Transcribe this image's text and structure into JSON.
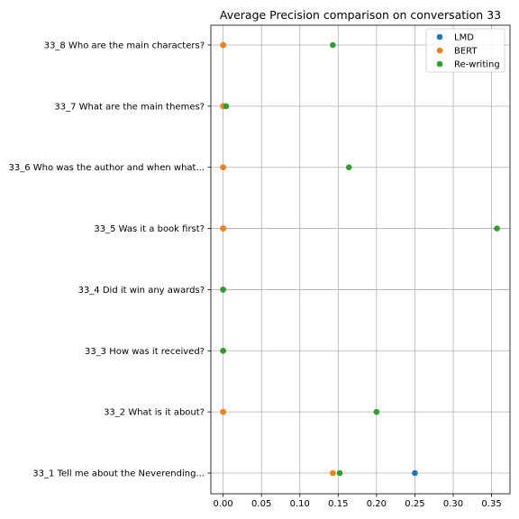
{
  "chart_data": {
    "type": "scatter",
    "title": "Average Precision comparison on conversation 33",
    "xlabel": "",
    "ylabel": "",
    "xlim": [
      -0.016,
      0.374
    ],
    "xticks": [
      0.0,
      0.05,
      0.1,
      0.15,
      0.2,
      0.25,
      0.3,
      0.35
    ],
    "xtick_labels": [
      "0.00",
      "0.05",
      "0.10",
      "0.15",
      "0.20",
      "0.25",
      "0.30",
      "0.35"
    ],
    "categories": [
      "33_1 Tell me about the Neverending...",
      "33_2 What is it about?",
      "33_3 How was it received?",
      "33_4 Did it win any awards?",
      "33_5 Was it a book first?",
      "33_6 Who was the author and when what...",
      "33_7 What are the main themes?",
      "33_8 Who are the main characters?"
    ],
    "grid": true,
    "legend_position": "top-right",
    "series": [
      {
        "name": "LMD",
        "color": "#1f77b4",
        "values": [
          0.25,
          0.0,
          0.0,
          0.0,
          0.0,
          0.0,
          0.0,
          0.0
        ]
      },
      {
        "name": "BERT",
        "color": "#ff7f0e",
        "values": [
          0.143,
          0.0,
          0.0,
          0.0,
          0.0,
          0.0,
          0.0,
          0.0
        ]
      },
      {
        "name": "Re-writing",
        "color": "#2ca02c",
        "values": [
          0.152,
          0.2,
          0.0,
          0.0,
          0.357,
          0.164,
          0.004,
          0.143
        ]
      }
    ]
  }
}
